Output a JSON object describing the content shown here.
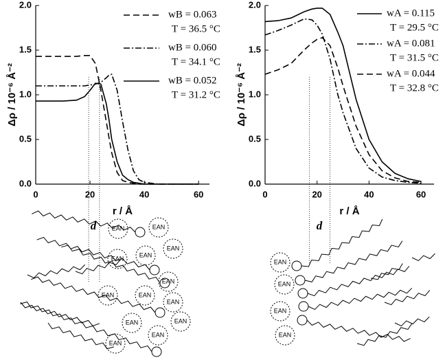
{
  "chart_data": [
    {
      "type": "line",
      "y_label": "Δρ / 10⁻⁶ Å⁻²",
      "x_label": "r / Å",
      "x": [
        0,
        10,
        15,
        18,
        20,
        22,
        24,
        26,
        27,
        28,
        30,
        32,
        34,
        36,
        38,
        40,
        45,
        50,
        60
      ],
      "xlim": [
        0,
        64
      ],
      "xticks": [
        0,
        20,
        40,
        60
      ],
      "ylim": [
        0,
        2
      ],
      "yticks": [
        {
          "value": 0,
          "label": "0.0"
        },
        {
          "value": 0.5,
          "label": "0.5"
        },
        {
          "value": 1,
          "label": "1.0"
        },
        {
          "value": 1.5,
          "label": "1.5"
        },
        {
          "value": 2,
          "label": "2.0"
        }
      ],
      "guides": [
        19.5,
        23.5
      ],
      "series": [
        {
          "name": "wB = 0.063",
          "condition": "T = 36.5 °C",
          "color": "#000",
          "style": "dashed",
          "values": [
            1.43,
            1.43,
            1.43,
            1.44,
            1.44,
            1.35,
            1.05,
            0.7,
            0.52,
            0.35,
            0.13,
            0.04,
            0.02,
            0.01,
            0,
            0,
            0,
            0,
            0
          ]
        },
        {
          "name": "wB = 0.060",
          "condition": "T = 34.1 °C",
          "color": "#000",
          "style": "dashdot",
          "values": [
            1.1,
            1.1,
            1.1,
            1.1,
            1.11,
            1.12,
            1.14,
            1.19,
            1.22,
            1.23,
            1.05,
            0.7,
            0.38,
            0.15,
            0.05,
            0.02,
            0,
            0,
            0
          ]
        },
        {
          "name": "wB = 0.052",
          "condition": "T = 31.2 °C",
          "color": "#000",
          "style": "solid",
          "values": [
            0.93,
            0.93,
            0.94,
            0.98,
            1.05,
            1.13,
            1.12,
            0.9,
            0.72,
            0.5,
            0.25,
            0.1,
            0.05,
            0.02,
            0.01,
            0,
            0,
            0,
            0
          ]
        }
      ]
    },
    {
      "type": "line",
      "y_label": "Δρ / 10⁻⁶ Å⁻²",
      "x_label": "r / Å",
      "x": [
        0,
        5,
        10,
        15,
        18,
        20,
        22,
        25,
        28,
        30,
        35,
        40,
        45,
        50,
        55,
        60
      ],
      "xlim": [
        0,
        65
      ],
      "xticks": [
        0,
        20,
        40,
        60
      ],
      "ylim": [
        0,
        2
      ],
      "yticks": [
        {
          "value": 0,
          "label": "0.0"
        },
        {
          "value": 0.5,
          "label": "0.5"
        },
        {
          "value": 1,
          "label": "1.0"
        },
        {
          "value": 1.5,
          "label": "1.5"
        },
        {
          "value": 2,
          "label": "2.0"
        }
      ],
      "guides": [
        17,
        25
      ],
      "series": [
        {
          "name": "wA = 0.115",
          "condition": "T = 29.5 °C",
          "color": "#000",
          "style": "solid",
          "values": [
            1.82,
            1.83,
            1.86,
            1.93,
            1.96,
            1.97,
            1.97,
            1.9,
            1.7,
            1.55,
            0.95,
            0.5,
            0.25,
            0.12,
            0.06,
            0.03
          ]
        },
        {
          "name": "wA = 0.081",
          "condition": "T = 31.5 °C",
          "color": "#000",
          "style": "dashdot",
          "values": [
            1.67,
            1.72,
            1.78,
            1.85,
            1.84,
            1.78,
            1.68,
            1.4,
            1.0,
            0.8,
            0.4,
            0.18,
            0.08,
            0.04,
            0.02,
            0.01
          ]
        },
        {
          "name": "wA = 0.044",
          "condition": "T = 32.8 °C",
          "color": "#000",
          "style": "dashed",
          "values": [
            1.23,
            1.28,
            1.35,
            1.5,
            1.58,
            1.62,
            1.64,
            1.55,
            1.3,
            1.1,
            0.65,
            0.33,
            0.15,
            0.07,
            0.03,
            0.02
          ]
        }
      ]
    }
  ],
  "diagrams": [
    {
      "distance_label": "d",
      "molecule_labels": [
        "EAN",
        "EAN",
        "EAN",
        "EAN",
        "EAN",
        "EAN",
        "EAN",
        "EAN",
        "EAN",
        "EAN",
        "EAN",
        "EAN",
        "EAN"
      ]
    },
    {
      "distance_label": "d",
      "molecule_labels": [
        "EAN",
        "EAN",
        "EAN",
        "EAN"
      ]
    }
  ]
}
